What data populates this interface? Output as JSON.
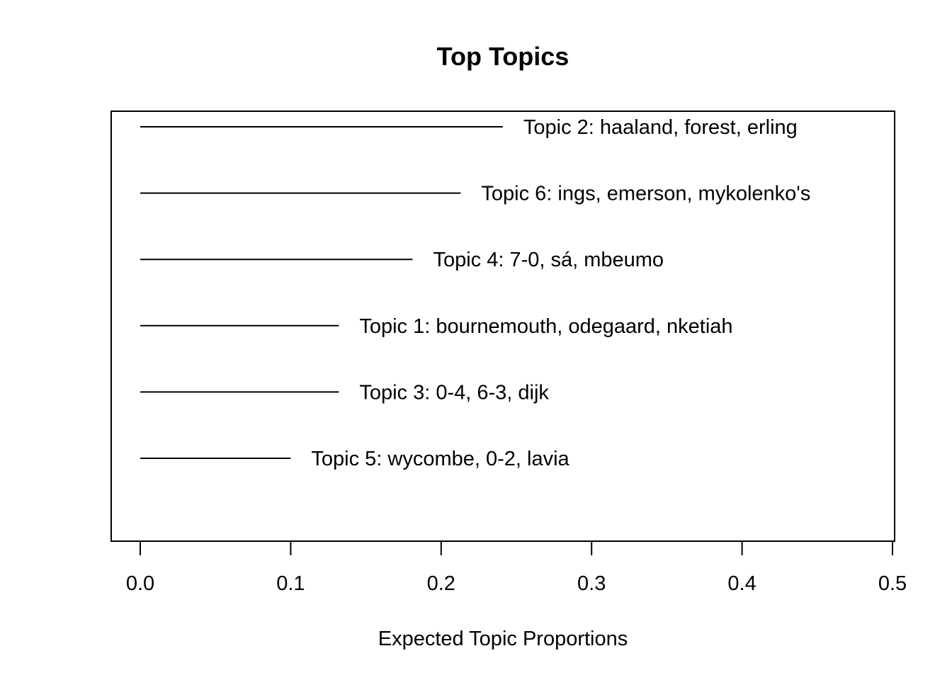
{
  "chart_data": {
    "type": "bar",
    "title": "Top Topics",
    "xlabel": "Expected Topic Proportions",
    "ylabel": "",
    "xlim": [
      0.0,
      0.5
    ],
    "xticks": [
      "0.0",
      "0.1",
      "0.2",
      "0.3",
      "0.4",
      "0.5"
    ],
    "grid": false,
    "orientation": "horizontal",
    "items": [
      {
        "label": "Topic 2: haaland, forest, erling",
        "value": 0.241
      },
      {
        "label": "Topic 6: ings, emerson, mykolenko's",
        "value": 0.213
      },
      {
        "label": "Topic 4: 7-0, sá, mbeumo",
        "value": 0.181
      },
      {
        "label": "Topic 1: bournemouth, odegaard, nketiah",
        "value": 0.132
      },
      {
        "label": "Topic 3: 0-4, 6-3, dijk",
        "value": 0.132
      },
      {
        "label": "Topic 5: wycombe, 0-2, lavia",
        "value": 0.1
      }
    ]
  }
}
